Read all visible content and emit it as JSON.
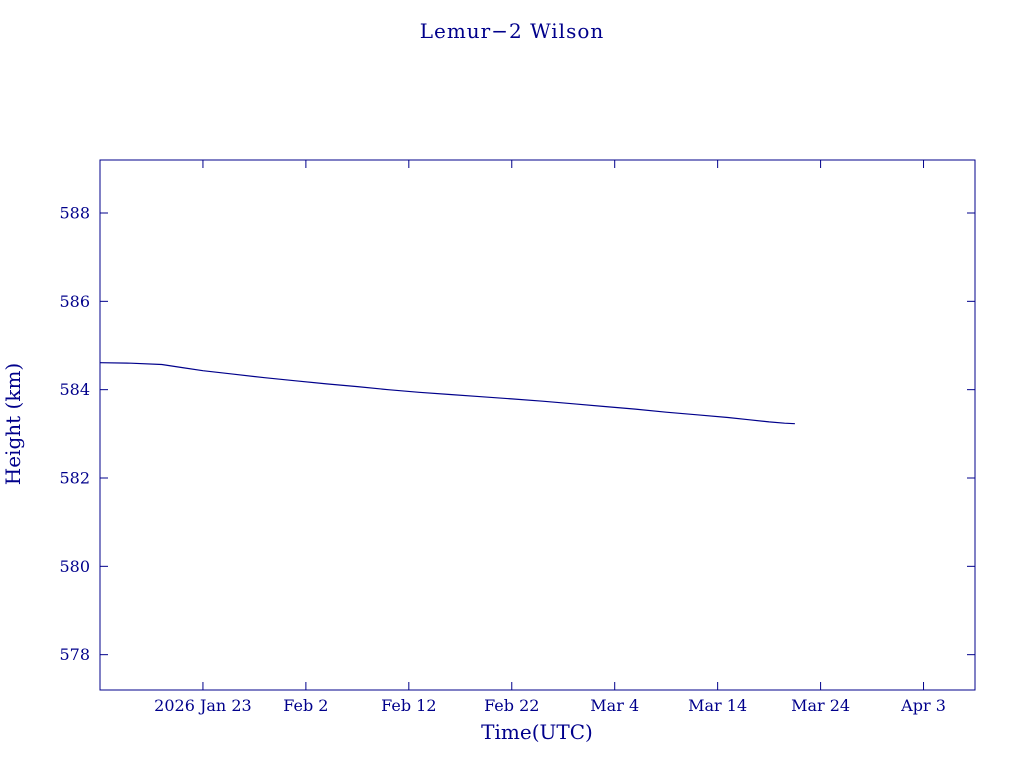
{
  "page": {
    "background": "#ffffff",
    "accent_color": "#00008B"
  },
  "chart_data": {
    "type": "line",
    "title": "Lemur−2 Wilson",
    "xlabel": "Time(UTC)",
    "ylabel": "Height (km)",
    "grid": false,
    "legend": "none",
    "line_color": "#00008B",
    "axis_color": "#00008B",
    "x_domain_days": [
      0,
      85
    ],
    "x_domain_note": "days since 2026 Jan 13",
    "y_domain": [
      577.2,
      589.2
    ],
    "y_ticks": [
      578,
      580,
      582,
      584,
      586,
      588
    ],
    "x_ticks": [
      {
        "day": 10,
        "label": "2026 Jan 23"
      },
      {
        "day": 20,
        "label": "Feb 2"
      },
      {
        "day": 30,
        "label": "Feb 12"
      },
      {
        "day": 40,
        "label": "Feb 22"
      },
      {
        "day": 50,
        "label": "Mar 4"
      },
      {
        "day": 60,
        "label": "Mar 14"
      },
      {
        "day": 70,
        "label": "Mar 24"
      },
      {
        "day": 80,
        "label": "Apr 3"
      }
    ],
    "series_name": "Height (km)",
    "points": [
      [
        0,
        584.61
      ],
      [
        3,
        584.6
      ],
      [
        6,
        584.57
      ],
      [
        8,
        584.5
      ],
      [
        10,
        584.43
      ],
      [
        13,
        584.35
      ],
      [
        16,
        584.27
      ],
      [
        19,
        584.2
      ],
      [
        22,
        584.13
      ],
      [
        25,
        584.07
      ],
      [
        28,
        584.0
      ],
      [
        31,
        583.94
      ],
      [
        34,
        583.89
      ],
      [
        37,
        583.84
      ],
      [
        40,
        583.79
      ],
      [
        43,
        583.74
      ],
      [
        46,
        583.68
      ],
      [
        49,
        583.62
      ],
      [
        52,
        583.56
      ],
      [
        55,
        583.49
      ],
      [
        58,
        583.43
      ],
      [
        61,
        583.37
      ],
      [
        63,
        583.32
      ],
      [
        65,
        583.27
      ],
      [
        66.5,
        583.24
      ],
      [
        67.5,
        583.23
      ]
    ]
  }
}
